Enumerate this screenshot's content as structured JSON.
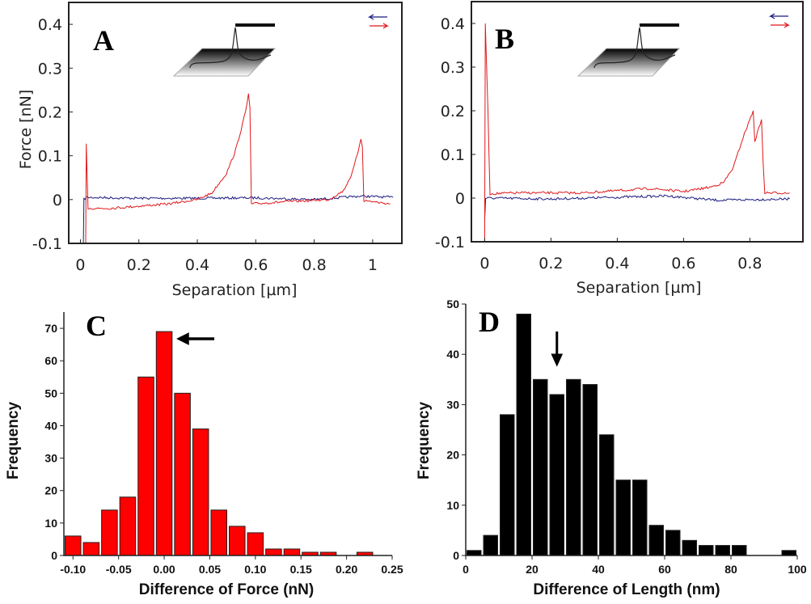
{
  "chart_data": [
    {
      "panel": "A",
      "type": "line",
      "xlabel": "Separation [µm]",
      "ylabel": "Force [nN]",
      "xlim": [
        -0.04,
        1.1
      ],
      "ylim": [
        -0.1,
        0.45
      ],
      "xticks": [
        0,
        0.2,
        0.4,
        0.6,
        0.8,
        1
      ],
      "xtick_labels": [
        "0",
        "0.2",
        "0.4",
        "0.6",
        "0.8",
        "1"
      ],
      "yticks": [
        -0.1,
        0,
        0.1,
        0.2,
        0.3,
        0.4
      ],
      "ytick_labels": [
        "-0.1",
        "0",
        "0.1",
        "0.2",
        "0.3",
        "0.4"
      ],
      "legend": "top-right",
      "legend_symbols": [
        "←",
        "→"
      ],
      "series": [
        {
          "color": "#1a1a80",
          "direction": "approach",
          "x": [
            0.01,
            0.012,
            0.02,
            0.2,
            0.4,
            0.6,
            0.8,
            0.96,
            1.07
          ],
          "y": [
            -0.1,
            0,
            0.005,
            0.003,
            0.003,
            0.004,
            0.0,
            0.008,
            0.005
          ]
        },
        {
          "color": "#e0181b",
          "direction": "retract",
          "x": [
            0.018,
            0.02,
            0.022,
            0.026,
            0.1,
            0.3,
            0.4,
            0.45,
            0.5,
            0.53,
            0.55,
            0.565,
            0.575,
            0.58,
            0.585,
            0.7,
            0.85,
            0.9,
            0.93,
            0.95,
            0.96,
            0.965,
            0.97,
            1.06
          ],
          "y": [
            -0.1,
            0.13,
            0.08,
            -0.02,
            -0.02,
            -0.01,
            0.0,
            0.015,
            0.06,
            0.11,
            0.16,
            0.2,
            0.24,
            0.21,
            -0.01,
            -0.005,
            0.0,
            0.02,
            0.06,
            0.11,
            0.14,
            0.12,
            -0.002,
            -0.01
          ]
        }
      ]
    },
    {
      "panel": "B",
      "type": "line",
      "xlabel": "Separation [µm]",
      "ylabel": "",
      "xlim": [
        -0.04,
        0.96
      ],
      "ylim": [
        -0.1,
        0.45
      ],
      "xticks": [
        0,
        0.2,
        0.4,
        0.6,
        0.8
      ],
      "xtick_labels": [
        "0",
        "0.2",
        "0.4",
        "0.6",
        "0.8"
      ],
      "yticks": [
        -0.1,
        0,
        0.1,
        0.2,
        0.3,
        0.4
      ],
      "ytick_labels": [
        "-0.1",
        "0",
        "0.1",
        "0.2",
        "0.3",
        "0.4"
      ],
      "legend": "top-right",
      "legend_symbols": [
        "←",
        "→"
      ],
      "series": [
        {
          "color": "#1a1a80",
          "direction": "approach",
          "x": [
            0.0,
            0.003,
            0.02,
            0.2,
            0.4,
            0.55,
            0.7,
            0.92
          ],
          "y": [
            -0.05,
            0,
            0.0,
            -0.002,
            0.002,
            0.005,
            -0.005,
            -0.002
          ]
        },
        {
          "color": "#e0181b",
          "direction": "retract",
          "x": [
            0.0,
            0.002,
            0.005,
            0.01,
            0.016,
            0.1,
            0.3,
            0.5,
            0.6,
            0.68,
            0.72,
            0.75,
            0.78,
            0.81,
            0.815,
            0.835,
            0.84,
            0.845,
            0.92
          ],
          "y": [
            -0.1,
            0.4,
            0.32,
            0.2,
            0.01,
            0.012,
            0.012,
            0.022,
            0.015,
            0.025,
            0.035,
            0.07,
            0.14,
            0.2,
            0.13,
            0.18,
            0.08,
            0.012,
            0.012
          ]
        }
      ]
    },
    {
      "panel": "C",
      "type": "bar",
      "xlabel": "Difference of Force (nN)",
      "ylabel": "Frequency",
      "xlim": [
        -0.11,
        0.25
      ],
      "ylim": [
        0,
        75
      ],
      "bin_width": 0.02,
      "bar_color": "#ff0000",
      "xticks": [
        -0.1,
        -0.05,
        0.0,
        0.05,
        0.1,
        0.15,
        0.2,
        0.25
      ],
      "xtick_labels": [
        "-0.10",
        "-0.05",
        "0.00",
        "0.05",
        "0.10",
        "0.15",
        "0.20",
        "0.25"
      ],
      "yticks": [
        0,
        10,
        20,
        30,
        40,
        50,
        60,
        70
      ],
      "ytick_labels": [
        "0",
        "10",
        "20",
        "30",
        "40",
        "50",
        "60",
        "70"
      ],
      "categories": [
        -0.1,
        -0.08,
        -0.06,
        -0.04,
        -0.02,
        0.0,
        0.02,
        0.04,
        0.06,
        0.08,
        0.1,
        0.12,
        0.14,
        0.16,
        0.18,
        0.2,
        0.22
      ],
      "values": [
        6,
        4,
        14,
        18,
        55,
        69,
        50,
        39,
        14,
        9,
        7,
        2,
        2,
        1,
        1,
        0,
        1
      ]
    },
    {
      "panel": "D",
      "type": "bar",
      "xlabel": "Difference of Length  (nm)",
      "ylabel": "Frequency",
      "xlim": [
        0,
        100
      ],
      "ylim": [
        0,
        50
      ],
      "bin_width": 5,
      "bar_color": "#000000",
      "xticks": [
        0,
        20,
        40,
        60,
        80,
        100
      ],
      "xtick_labels": [
        "0",
        "20",
        "40",
        "60",
        "80",
        "100"
      ],
      "yticks": [
        0,
        10,
        20,
        30,
        40,
        50
      ],
      "ytick_labels": [
        "0",
        "10",
        "20",
        "30",
        "40",
        "50"
      ],
      "categories": [
        2.5,
        7.5,
        12.5,
        17.5,
        22.5,
        27.5,
        32.5,
        37.5,
        42.5,
        47.5,
        52.5,
        57.5,
        62.5,
        67.5,
        72.5,
        77.5,
        82.5,
        87.5,
        92.5,
        97.5
      ],
      "values": [
        1,
        4,
        28,
        48,
        35,
        32,
        35,
        34,
        24,
        15,
        15,
        6,
        5,
        3,
        2,
        2,
        2,
        0,
        0,
        1
      ]
    }
  ]
}
